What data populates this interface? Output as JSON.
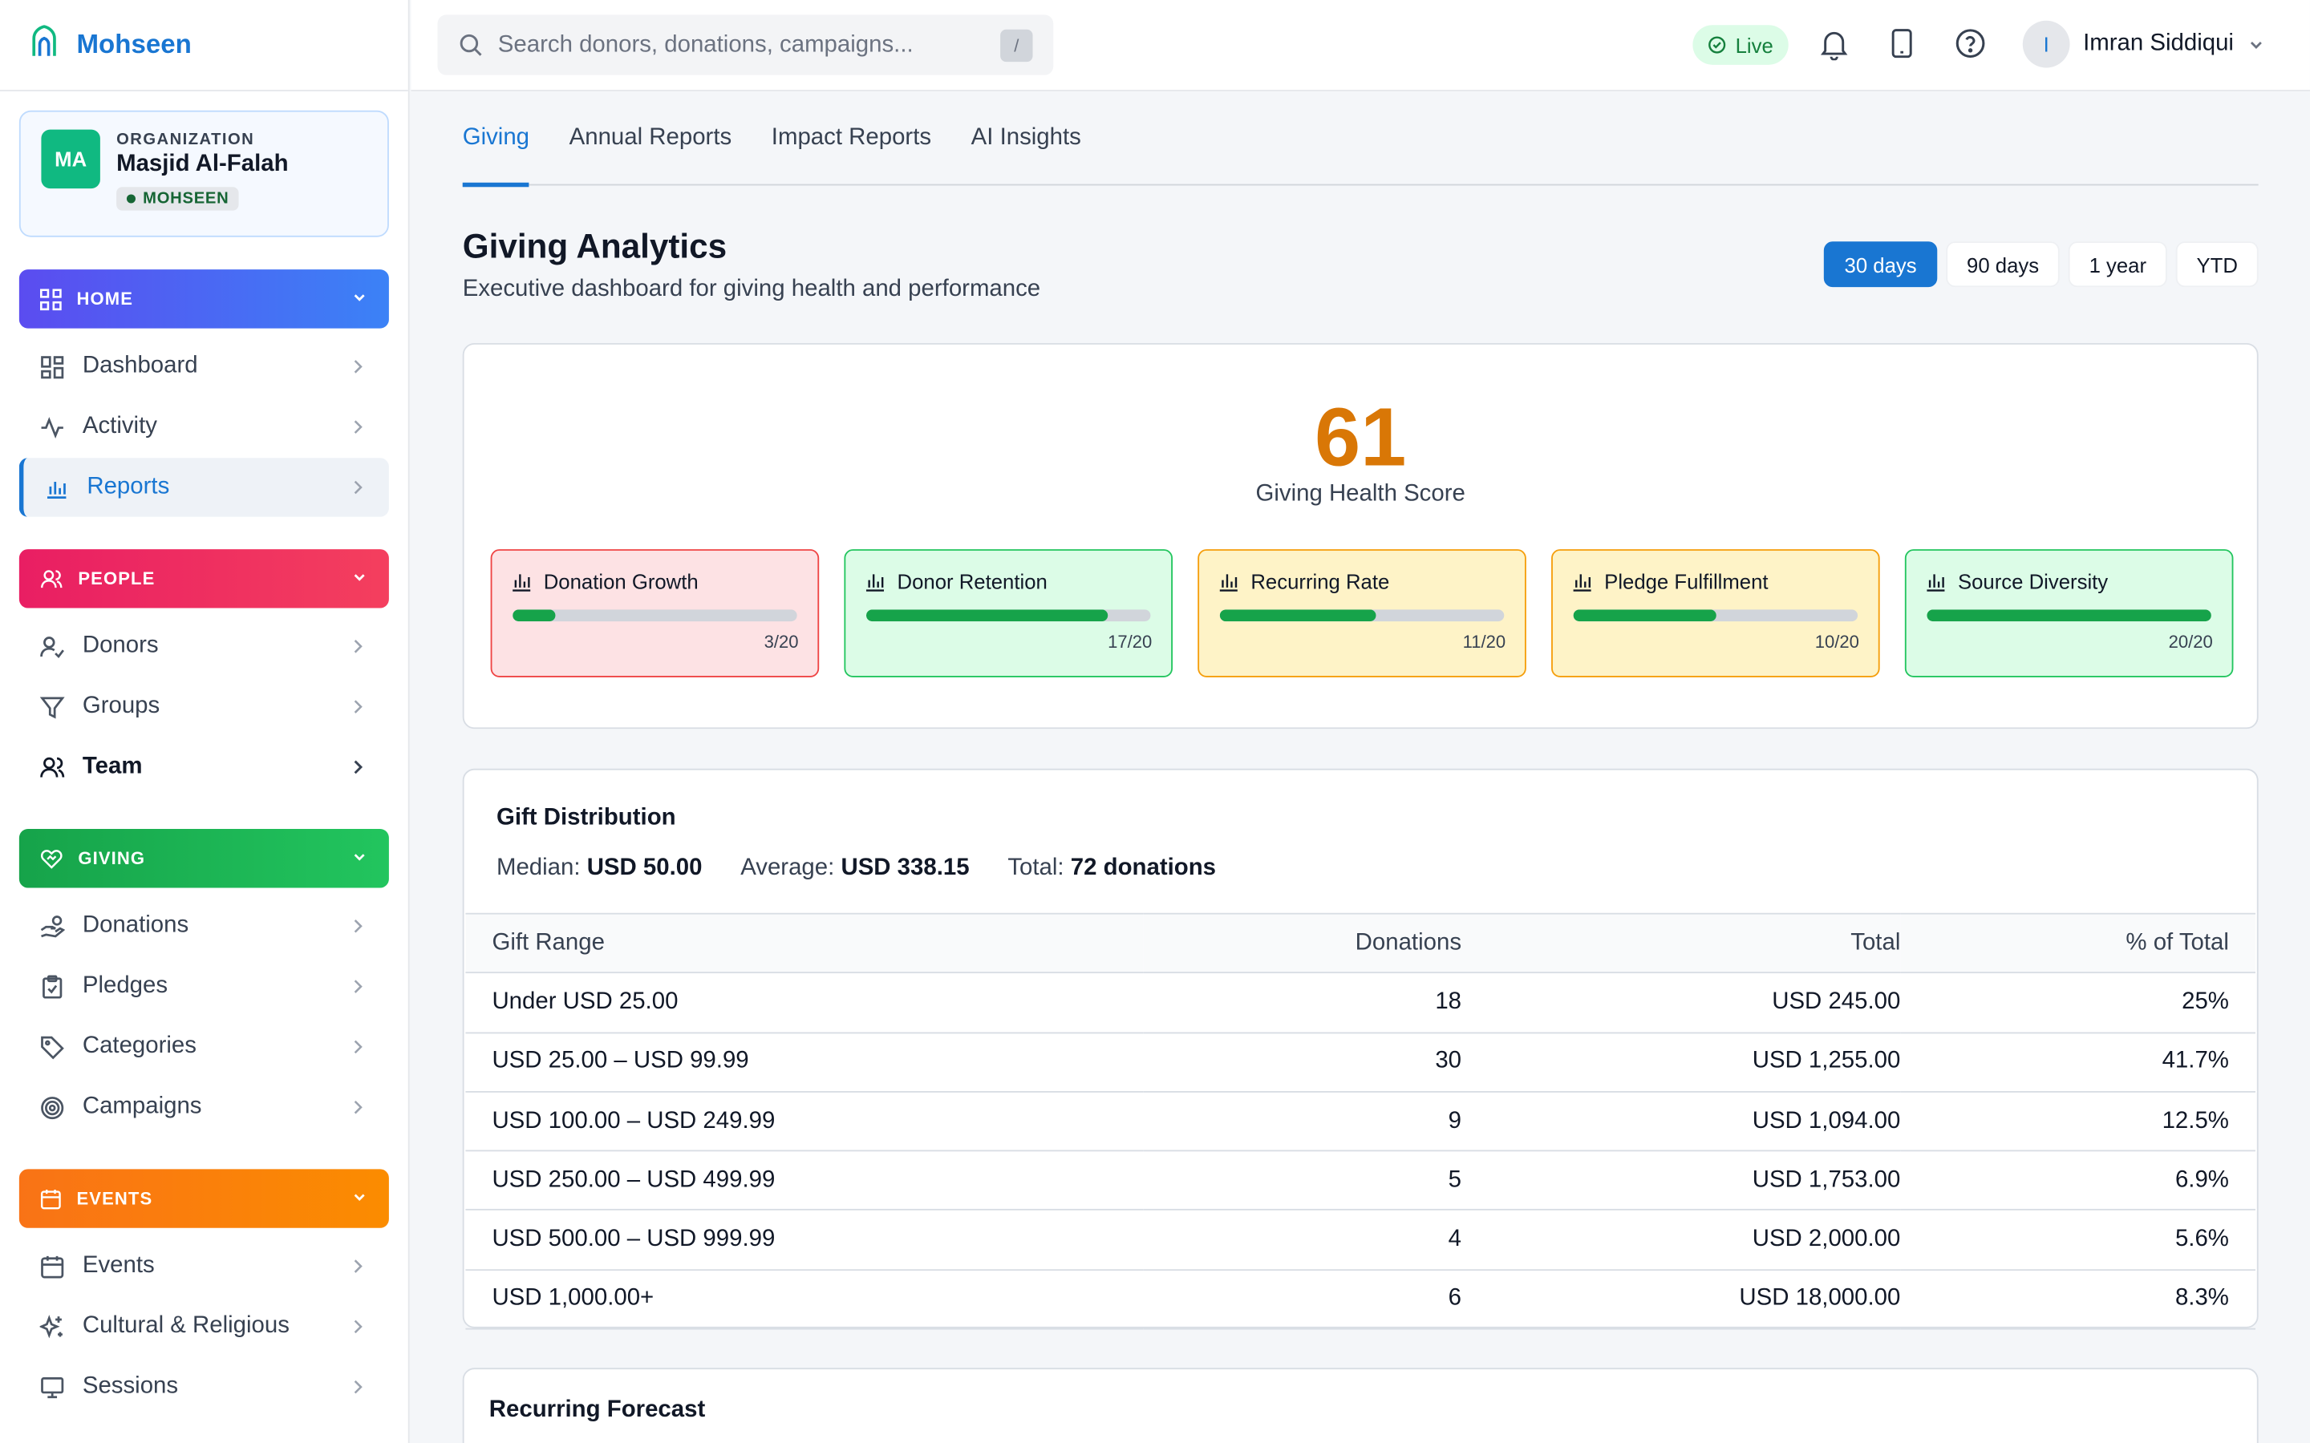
{
  "brand": {
    "name": "Mohseen"
  },
  "org": {
    "initials": "MA",
    "label": "ORGANIZATION",
    "name": "Masjid Al-Falah",
    "badge": "MOHSEEN"
  },
  "sections": {
    "home": "HOME",
    "people": "PEOPLE",
    "giving": "GIVING",
    "events": "EVENTS"
  },
  "nav": {
    "dashboard": "Dashboard",
    "activity": "Activity",
    "reports": "Reports",
    "donors": "Donors",
    "groups": "Groups",
    "team": "Team",
    "donations": "Donations",
    "pledges": "Pledges",
    "categories": "Categories",
    "campaigns": "Campaigns",
    "events": "Events",
    "cultural": "Cultural & Religious",
    "sessions": "Sessions"
  },
  "topbar": {
    "search_placeholder": "Search donors, donations, campaigns...",
    "search_shortcut": "/",
    "live": "Live",
    "user_initial": "I",
    "user_name": "Imran Siddiqui"
  },
  "tabs": [
    "Giving",
    "Annual Reports",
    "Impact Reports",
    "AI Insights"
  ],
  "page": {
    "title": "Giving Analytics",
    "subtitle": "Executive dashboard for giving health and performance"
  },
  "ranges": [
    "30 days",
    "90 days",
    "1 year",
    "YTD"
  ],
  "health": {
    "score": "61",
    "label": "Giving Health Score",
    "metrics": [
      {
        "name": "Donation Growth",
        "score": "3/20",
        "value": 3,
        "max": 20,
        "bg": "#fde2e4",
        "border": "#ef4444"
      },
      {
        "name": "Donor Retention",
        "score": "17/20",
        "value": 17,
        "max": 20,
        "bg": "#dcfce7",
        "border": "#22c55e"
      },
      {
        "name": "Recurring Rate",
        "score": "11/20",
        "value": 11,
        "max": 20,
        "bg": "#fef3c7",
        "border": "#f59e0b"
      },
      {
        "name": "Pledge Fulfillment",
        "score": "10/20",
        "value": 10,
        "max": 20,
        "bg": "#fef3c7",
        "border": "#f59e0b"
      },
      {
        "name": "Source Diversity",
        "score": "20/20",
        "value": 20,
        "max": 20,
        "bg": "#dcfce7",
        "border": "#22c55e"
      }
    ]
  },
  "distribution": {
    "title": "Gift Distribution",
    "median_label": "Median:",
    "median": "USD 50.00",
    "average_label": "Average:",
    "average": "USD 338.15",
    "total_label": "Total:",
    "total": "72 donations",
    "headers": [
      "Gift Range",
      "Donations",
      "Total",
      "% of Total"
    ],
    "rows": [
      [
        "Under USD 25.00",
        "18",
        "USD 245.00",
        "25%"
      ],
      [
        "USD 25.00 – USD 99.99",
        "30",
        "USD 1,255.00",
        "41.7%"
      ],
      [
        "USD 100.00 – USD 249.99",
        "9",
        "USD 1,094.00",
        "12.5%"
      ],
      [
        "USD 250.00 – USD 499.99",
        "5",
        "USD 1,753.00",
        "6.9%"
      ],
      [
        "USD 500.00 – USD 999.99",
        "4",
        "USD 2,000.00",
        "5.6%"
      ],
      [
        "USD 1,000.00+",
        "6",
        "USD 18,000.00",
        "8.3%"
      ]
    ]
  },
  "forecast": {
    "title": "Recurring Forecast"
  }
}
